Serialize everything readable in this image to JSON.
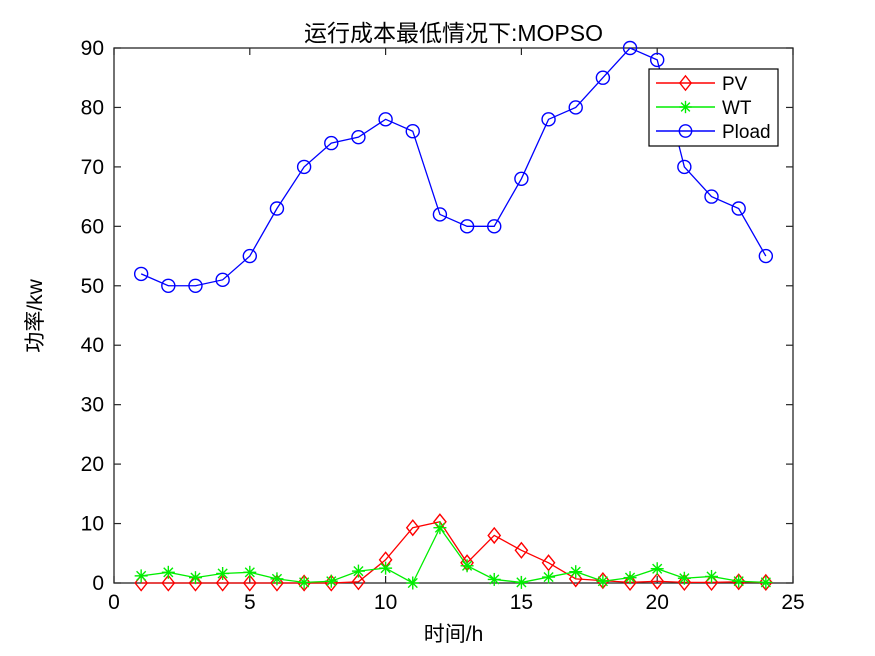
{
  "figure": {
    "title": "运行成本最低情况下:MOPSO",
    "xlabel": "时间/h",
    "ylabel": "功率/kw"
  },
  "chart_data": {
    "type": "line",
    "title": "运行成本最低情况下:MOPSO",
    "xlabel": "时间/h",
    "ylabel": "功率/kw",
    "xlim": [
      0,
      25
    ],
    "ylim": [
      0,
      90
    ],
    "xticks": [
      0,
      5,
      10,
      15,
      20,
      25
    ],
    "yticks": [
      0,
      10,
      20,
      30,
      40,
      50,
      60,
      70,
      80,
      90
    ],
    "grid": false,
    "legend_position": "upper-right-inside",
    "x": [
      1,
      2,
      3,
      4,
      5,
      6,
      7,
      8,
      9,
      10,
      11,
      12,
      13,
      14,
      15,
      16,
      17,
      18,
      19,
      20,
      21,
      22,
      23,
      24
    ],
    "series": [
      {
        "name": "PV",
        "color": "#ff0000",
        "marker": "diamond",
        "values": [
          0,
          0,
          0,
          0,
          0,
          0,
          0,
          0,
          0.2,
          3.9,
          9.3,
          10.3,
          3.4,
          8,
          5.5,
          3.4,
          0.7,
          0.4,
          0.1,
          0.3,
          0.1,
          0.1,
          0.2,
          0.1
        ]
      },
      {
        "name": "WT",
        "color": "#00ee00",
        "marker": "asterisk",
        "values": [
          1.2,
          1.8,
          0.9,
          1.6,
          1.8,
          0.7,
          0.1,
          0.3,
          2,
          2.5,
          0,
          9.3,
          2.9,
          0.6,
          0.1,
          1,
          1.9,
          0.3,
          0.9,
          2.4,
          0.8,
          1.1,
          0.3,
          0.1
        ]
      },
      {
        "name": "Pload",
        "color": "#0000ff",
        "marker": "circle",
        "values": [
          52,
          50,
          50,
          51,
          55,
          63,
          70,
          74,
          75,
          78,
          76,
          62,
          60,
          60,
          68,
          78,
          80,
          85,
          90,
          88,
          70,
          65,
          63,
          55
        ]
      }
    ]
  },
  "colors": {
    "axis": "#262626",
    "tick_text": "#000000",
    "background": "#ffffff",
    "legend_border": "#000000"
  }
}
